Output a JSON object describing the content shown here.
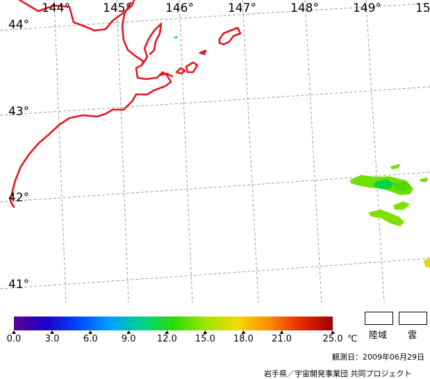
{
  "map": {
    "lon_labels": [
      "144°",
      "145°",
      "146°",
      "147°",
      "148°",
      "149°",
      "15"
    ],
    "lat_labels": [
      "44°",
      "43°",
      "42°",
      "41°"
    ],
    "coast_color": "#e8141e",
    "grid_color": "#9a9a9a"
  },
  "colorbar": {
    "min": 0.0,
    "max": 25.0,
    "tick_labels": [
      "0.0",
      "3.0",
      "6.0",
      "9.0",
      "12.0",
      "15.0",
      "18.0",
      "21.0",
      "25.0"
    ],
    "tick_values": [
      0,
      3,
      6,
      9,
      12,
      15,
      18,
      21,
      25
    ],
    "unit": "℃",
    "colors": [
      "#5a0096",
      "#1a00c8",
      "#0046ff",
      "#00a0ff",
      "#00d28c",
      "#28dc00",
      "#a0e600",
      "#f0dc00",
      "#ff8c00",
      "#e62800",
      "#a00000"
    ]
  },
  "legend": {
    "land": "陸域",
    "cloud": "雲"
  },
  "footer": {
    "observation_date": "観測日：2009年06月29日",
    "credit": "岩手県／宇宙開発事業団 共同プロジェクト"
  }
}
